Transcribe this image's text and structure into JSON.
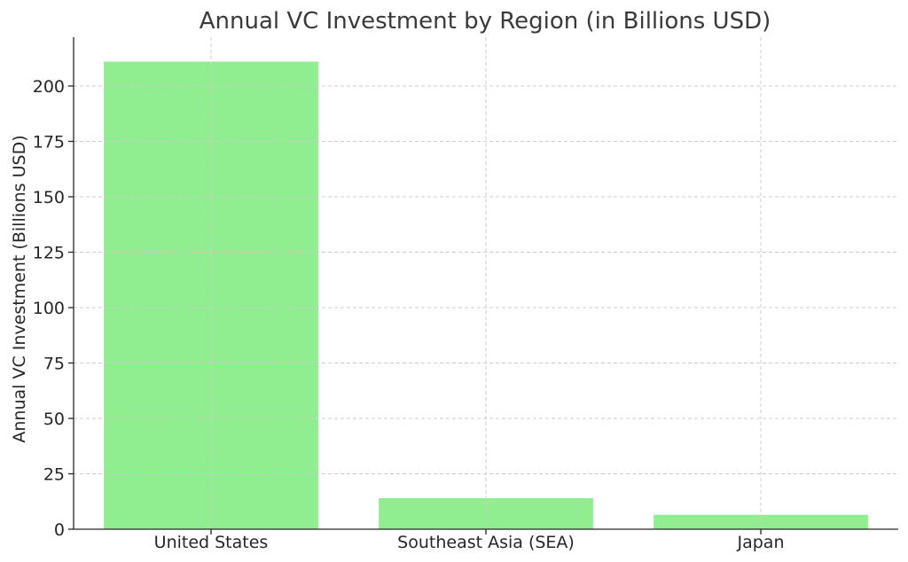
{
  "chart_data": {
    "type": "bar",
    "title": "Annual VC Investment by Region (in Billions USD)",
    "xlabel": "",
    "ylabel": "Annual VC Investment (Billions USD)",
    "categories": [
      "United States",
      "Southeast Asia (SEA)",
      "Japan"
    ],
    "values": [
      211,
      14,
      6.5
    ],
    "ylim": [
      0,
      222
    ],
    "yticks": [
      0,
      25,
      50,
      75,
      100,
      125,
      150,
      175,
      200
    ],
    "grid": true,
    "bar_color": "#90ee90"
  }
}
